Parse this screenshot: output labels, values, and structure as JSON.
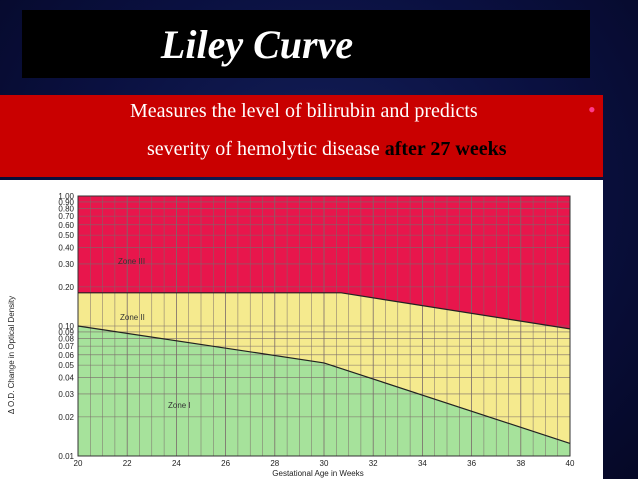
{
  "slide": {
    "title": "Liley Curve",
    "subtitle_line1": "Measures the level of  bilirubin and predicts",
    "subtitle_line2_plain": "severity of hemolytic disease ",
    "subtitle_line2_emphasis": "after 27 weeks",
    "bullet": "•"
  },
  "colors": {
    "title_bg": "#000000",
    "subtitle_bg": "#c90000",
    "zone3": "#e8164c",
    "zone2": "#f5ea8e",
    "zone1": "#a6e29b",
    "grid": "#7a6a6a"
  },
  "chart_data": {
    "type": "area",
    "title": "",
    "xlabel": "Gestational Age in Weeks",
    "ylabel": "Δ O.D.  Change in Optical Density",
    "xlim": [
      20,
      40
    ],
    "ylim": [
      0.01,
      1.0
    ],
    "y_scale": "log",
    "x_ticks": [
      20,
      22,
      24,
      26,
      28,
      30,
      32,
      34,
      36,
      38,
      40
    ],
    "x_tick_labels": [
      "20",
      "22",
      "24",
      "26",
      "28",
      "30",
      "32",
      "34",
      "36",
      "38",
      "40"
    ],
    "y_ticks": [
      1.0,
      0.9,
      0.8,
      0.7,
      0.6,
      0.5,
      0.4,
      0.3,
      0.2,
      0.1,
      0.09,
      0.08,
      0.07,
      0.06,
      0.05,
      0.04,
      0.03,
      0.02,
      0.01
    ],
    "y_tick_labels": [
      "1.00",
      "0.90",
      "0.80",
      "0.70",
      "0.60",
      "0.50",
      "0.40",
      "0.30",
      "0.20",
      "0.10",
      "0.09",
      "0.08",
      "0.07",
      "0.06",
      "0.05",
      "0.04",
      "0.03",
      "0.02",
      "0.01"
    ],
    "grid": true,
    "boundaries": [
      {
        "name": "Upper boundary (Zone II / Zone III)",
        "points": [
          [
            20,
            0.18
          ],
          [
            30.7,
            0.18
          ],
          [
            40,
            0.095
          ]
        ]
      },
      {
        "name": "Lower boundary (Zone I / Zone II)",
        "points": [
          [
            20,
            0.1
          ],
          [
            30,
            0.052
          ],
          [
            40,
            0.0125
          ]
        ]
      }
    ],
    "zones": [
      {
        "name": "Zone III",
        "label": "Zone    III"
      },
      {
        "name": "Zone II",
        "label": "Zone    II"
      },
      {
        "name": "Zone I",
        "label": "Zone    I"
      }
    ]
  }
}
